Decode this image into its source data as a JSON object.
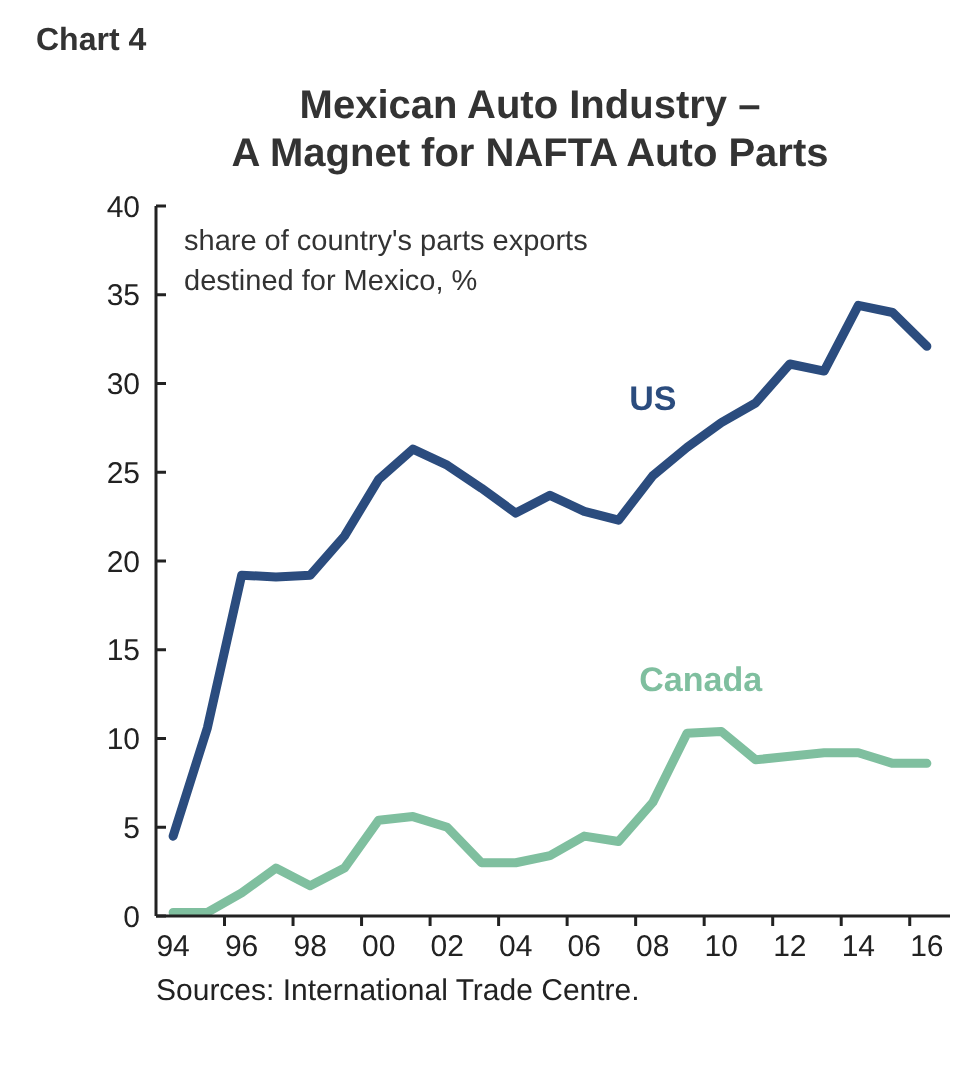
{
  "chart_data": {
    "type": "line",
    "title": "Mexican Auto Industry –\nA Magnet for NAFTA Auto Parts",
    "subtitle": "Chart 4",
    "categories": [
      "94",
      null,
      "96",
      null,
      "98",
      null,
      "00",
      null,
      "02",
      null,
      "04",
      null,
      "06",
      null,
      "08",
      null,
      "10",
      null,
      "12",
      null,
      "14",
      null,
      "16"
    ],
    "series": [
      {
        "name": "US",
        "color": "#2b4c7e",
        "values": [
          4.5,
          10.6,
          19.2,
          19.1,
          19.2,
          21.4,
          24.6,
          26.3,
          25.4,
          24.1,
          22.7,
          23.7,
          22.8,
          22.3,
          24.8,
          26.4,
          27.8,
          28.9,
          31.1,
          30.7,
          34.4,
          34.0,
          32.1
        ]
      },
      {
        "name": "Canada",
        "color": "#7fbf9f",
        "values": [
          0.2,
          0.2,
          1.3,
          2.7,
          1.7,
          2.7,
          5.4,
          5.6,
          5.0,
          3.0,
          3.0,
          3.4,
          4.5,
          4.2,
          6.4,
          10.3,
          10.4,
          8.8,
          9.0,
          9.2,
          9.2,
          8.6,
          8.6
        ]
      }
    ],
    "ylim": [
      0,
      40
    ],
    "yticks": [
      0,
      5,
      10,
      15,
      20,
      25,
      30,
      35,
      40
    ],
    "grid": false,
    "line_style": "solid",
    "annotations": [
      "share of country's parts exports\ndestined for Mexico, %",
      "Sources: International Trade Centre."
    ]
  }
}
